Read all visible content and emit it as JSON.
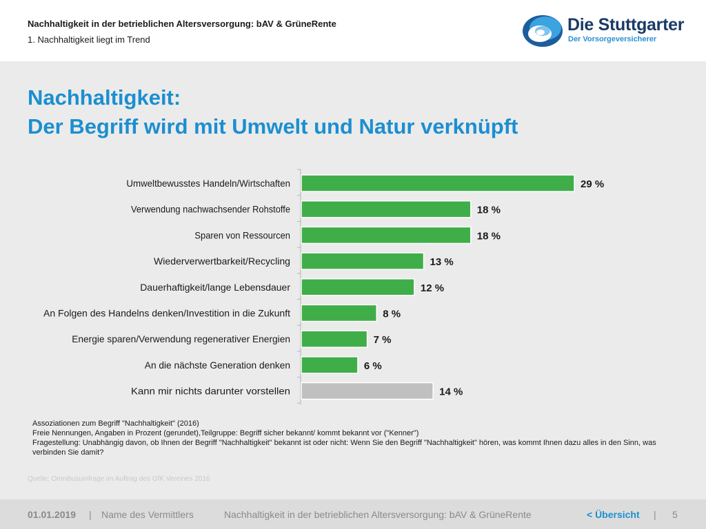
{
  "header": {
    "line1": "Nachhaltigkeit in der betrieblichen Altersversorgung: bAV & GrüneRente",
    "line2": "1. Nachhaltigkeit liegt im Trend"
  },
  "logo": {
    "name": "Die Stuttgarter",
    "tagline": "Der Vorsorgeversicherer"
  },
  "title": {
    "line1": "Nachhaltigkeit:",
    "line2": "Der Begriff wird mit Umwelt und Natur verknüpft"
  },
  "chart_data": {
    "type": "bar",
    "orientation": "horizontal",
    "categories": [
      "Umweltbewusstes Handeln/Wirtschaften",
      "Verwendung nachwachsender Rohstoffe",
      "Sparen von Ressourcen",
      "Wiederverwertbarkeit/Recycling",
      "Dauerhaftigkeit/lange Lebensdauer",
      "An Folgen des Handelns denken/Investition in die Zukunft",
      "Energie sparen/Verwendung regenerativer Energien",
      "An die nächste Generation denken",
      "Kann mir nichts darunter vorstellen"
    ],
    "values": [
      29,
      18,
      18,
      13,
      12,
      8,
      7,
      6,
      14
    ],
    "labels": [
      "29 %",
      "18 %",
      "18 %",
      "13 %",
      "12 %",
      "8 %",
      "7 %",
      "6 %",
      "14 %"
    ],
    "unit": "%",
    "xlim": [
      0,
      29
    ],
    "grid": false,
    "colors": [
      "#3fae49",
      "#3fae49",
      "#3fae49",
      "#3fae49",
      "#3fae49",
      "#3fae49",
      "#3fae49",
      "#3fae49",
      "#c0c0c0"
    ]
  },
  "notes": {
    "line1": "Assoziationen zum Begriff \"Nachhaltigkeit\" (2016)",
    "line2": "Freie Nennungen, Angaben in Prozent (gerundet),Teilgruppe: Begriff sicher bekannt/ kommt bekannt vor (\"Kenner\")",
    "line3": "Fragestellung: Unabhängig davon, ob Ihnen der Begriff \"Nachhaltigkeit\" bekannt ist oder nicht: Wenn Sie den Begriff \"Nachhaltigkeit\" hören, was kommt Ihnen dazu alles in den Sinn, was verbinden Sie damit?"
  },
  "source": "Quelle: Omnibusumfrage im Auftrag des GfK Vereines 2016",
  "footer": {
    "date": "01.01.2019",
    "separator": "|",
    "vermittler": "Name des Vermittlers",
    "title": "Nachhaltigkeit in der betrieblichen Altersversorgung: bAV & GrüneRente",
    "uebersicht": "< Übersicht",
    "page": "5"
  },
  "colors": {
    "accent": "#1b8fd0",
    "bar_green": "#3fae49",
    "bar_grey": "#c0c0c0",
    "brand_dark": "#1a3a66"
  }
}
